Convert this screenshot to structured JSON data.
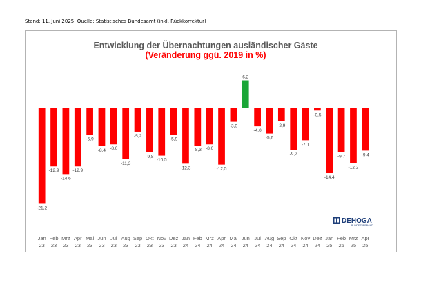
{
  "stand_text": "Stand: 11. Juni 2025; Quelle: Statistisches Bundesamt (inkl. Rückkorrektur)",
  "logo": {
    "name": "DEHOGA",
    "sub": "BUNDESVERBAND"
  },
  "colors": {
    "negative": "#ff0000",
    "positive": "#1aa637",
    "title": "#595959",
    "subtitle": "#ff0000"
  },
  "chart_data": {
    "type": "bar",
    "title": "Entwicklung der Übernachtungen ausländischer Gäste",
    "subtitle": "(Veränderung ggü. 2019 in %)",
    "xlabel": "",
    "ylabel": "",
    "ylim": [
      -23,
      8
    ],
    "grid": false,
    "categories": [
      [
        "Jan",
        "23"
      ],
      [
        "Feb",
        "23"
      ],
      [
        "Mrz",
        "23"
      ],
      [
        "Apr",
        "23"
      ],
      [
        "Mai",
        "23"
      ],
      [
        "Jun",
        "23"
      ],
      [
        "Jul",
        "23"
      ],
      [
        "Aug",
        "23"
      ],
      [
        "Sep",
        "23"
      ],
      [
        "Okt",
        "23"
      ],
      [
        "Nov",
        "23"
      ],
      [
        "Dez",
        "23"
      ],
      [
        "Jan",
        "24"
      ],
      [
        "Feb",
        "24"
      ],
      [
        "Mrz",
        "24"
      ],
      [
        "Apr",
        "24"
      ],
      [
        "Mai",
        "24"
      ],
      [
        "Jun",
        "24"
      ],
      [
        "Jul",
        "24"
      ],
      [
        "Aug",
        "24"
      ],
      [
        "Sep",
        "24"
      ],
      [
        "Okt",
        "24"
      ],
      [
        "Nov",
        "24"
      ],
      [
        "Dez",
        "24"
      ],
      [
        "Jan",
        "25"
      ],
      [
        "Feb",
        "25"
      ],
      [
        "Mrz",
        "25"
      ],
      [
        "Apr",
        "25"
      ]
    ],
    "values": [
      -21.2,
      -12.9,
      -14.6,
      -12.9,
      -5.9,
      -8.4,
      -8.0,
      -11.3,
      -5.2,
      -9.8,
      -10.5,
      -5.9,
      -12.3,
      -8.3,
      -8.0,
      -12.5,
      -3.0,
      6.2,
      -4.0,
      -5.6,
      -2.9,
      -9.2,
      -7.1,
      -0.5,
      -14.4,
      -9.7,
      -12.2,
      -9.4
    ],
    "labels": [
      "-21,2",
      "-12,9",
      "-14,6",
      "-12,9",
      "-5,9",
      "-8,4",
      "-8,0",
      "-11,3",
      "-5,2",
      "-9,8",
      "-10,5",
      "-5,9",
      "-12,3",
      "-8,3",
      "-8,0",
      "-12,5",
      "-3,0",
      "6,2",
      "-4,0",
      "-5,6",
      "-2,9",
      "-9,2",
      "-7,1",
      "-0,5",
      "-14,4",
      "-9,7",
      "-12,2",
      "-9,4"
    ]
  }
}
